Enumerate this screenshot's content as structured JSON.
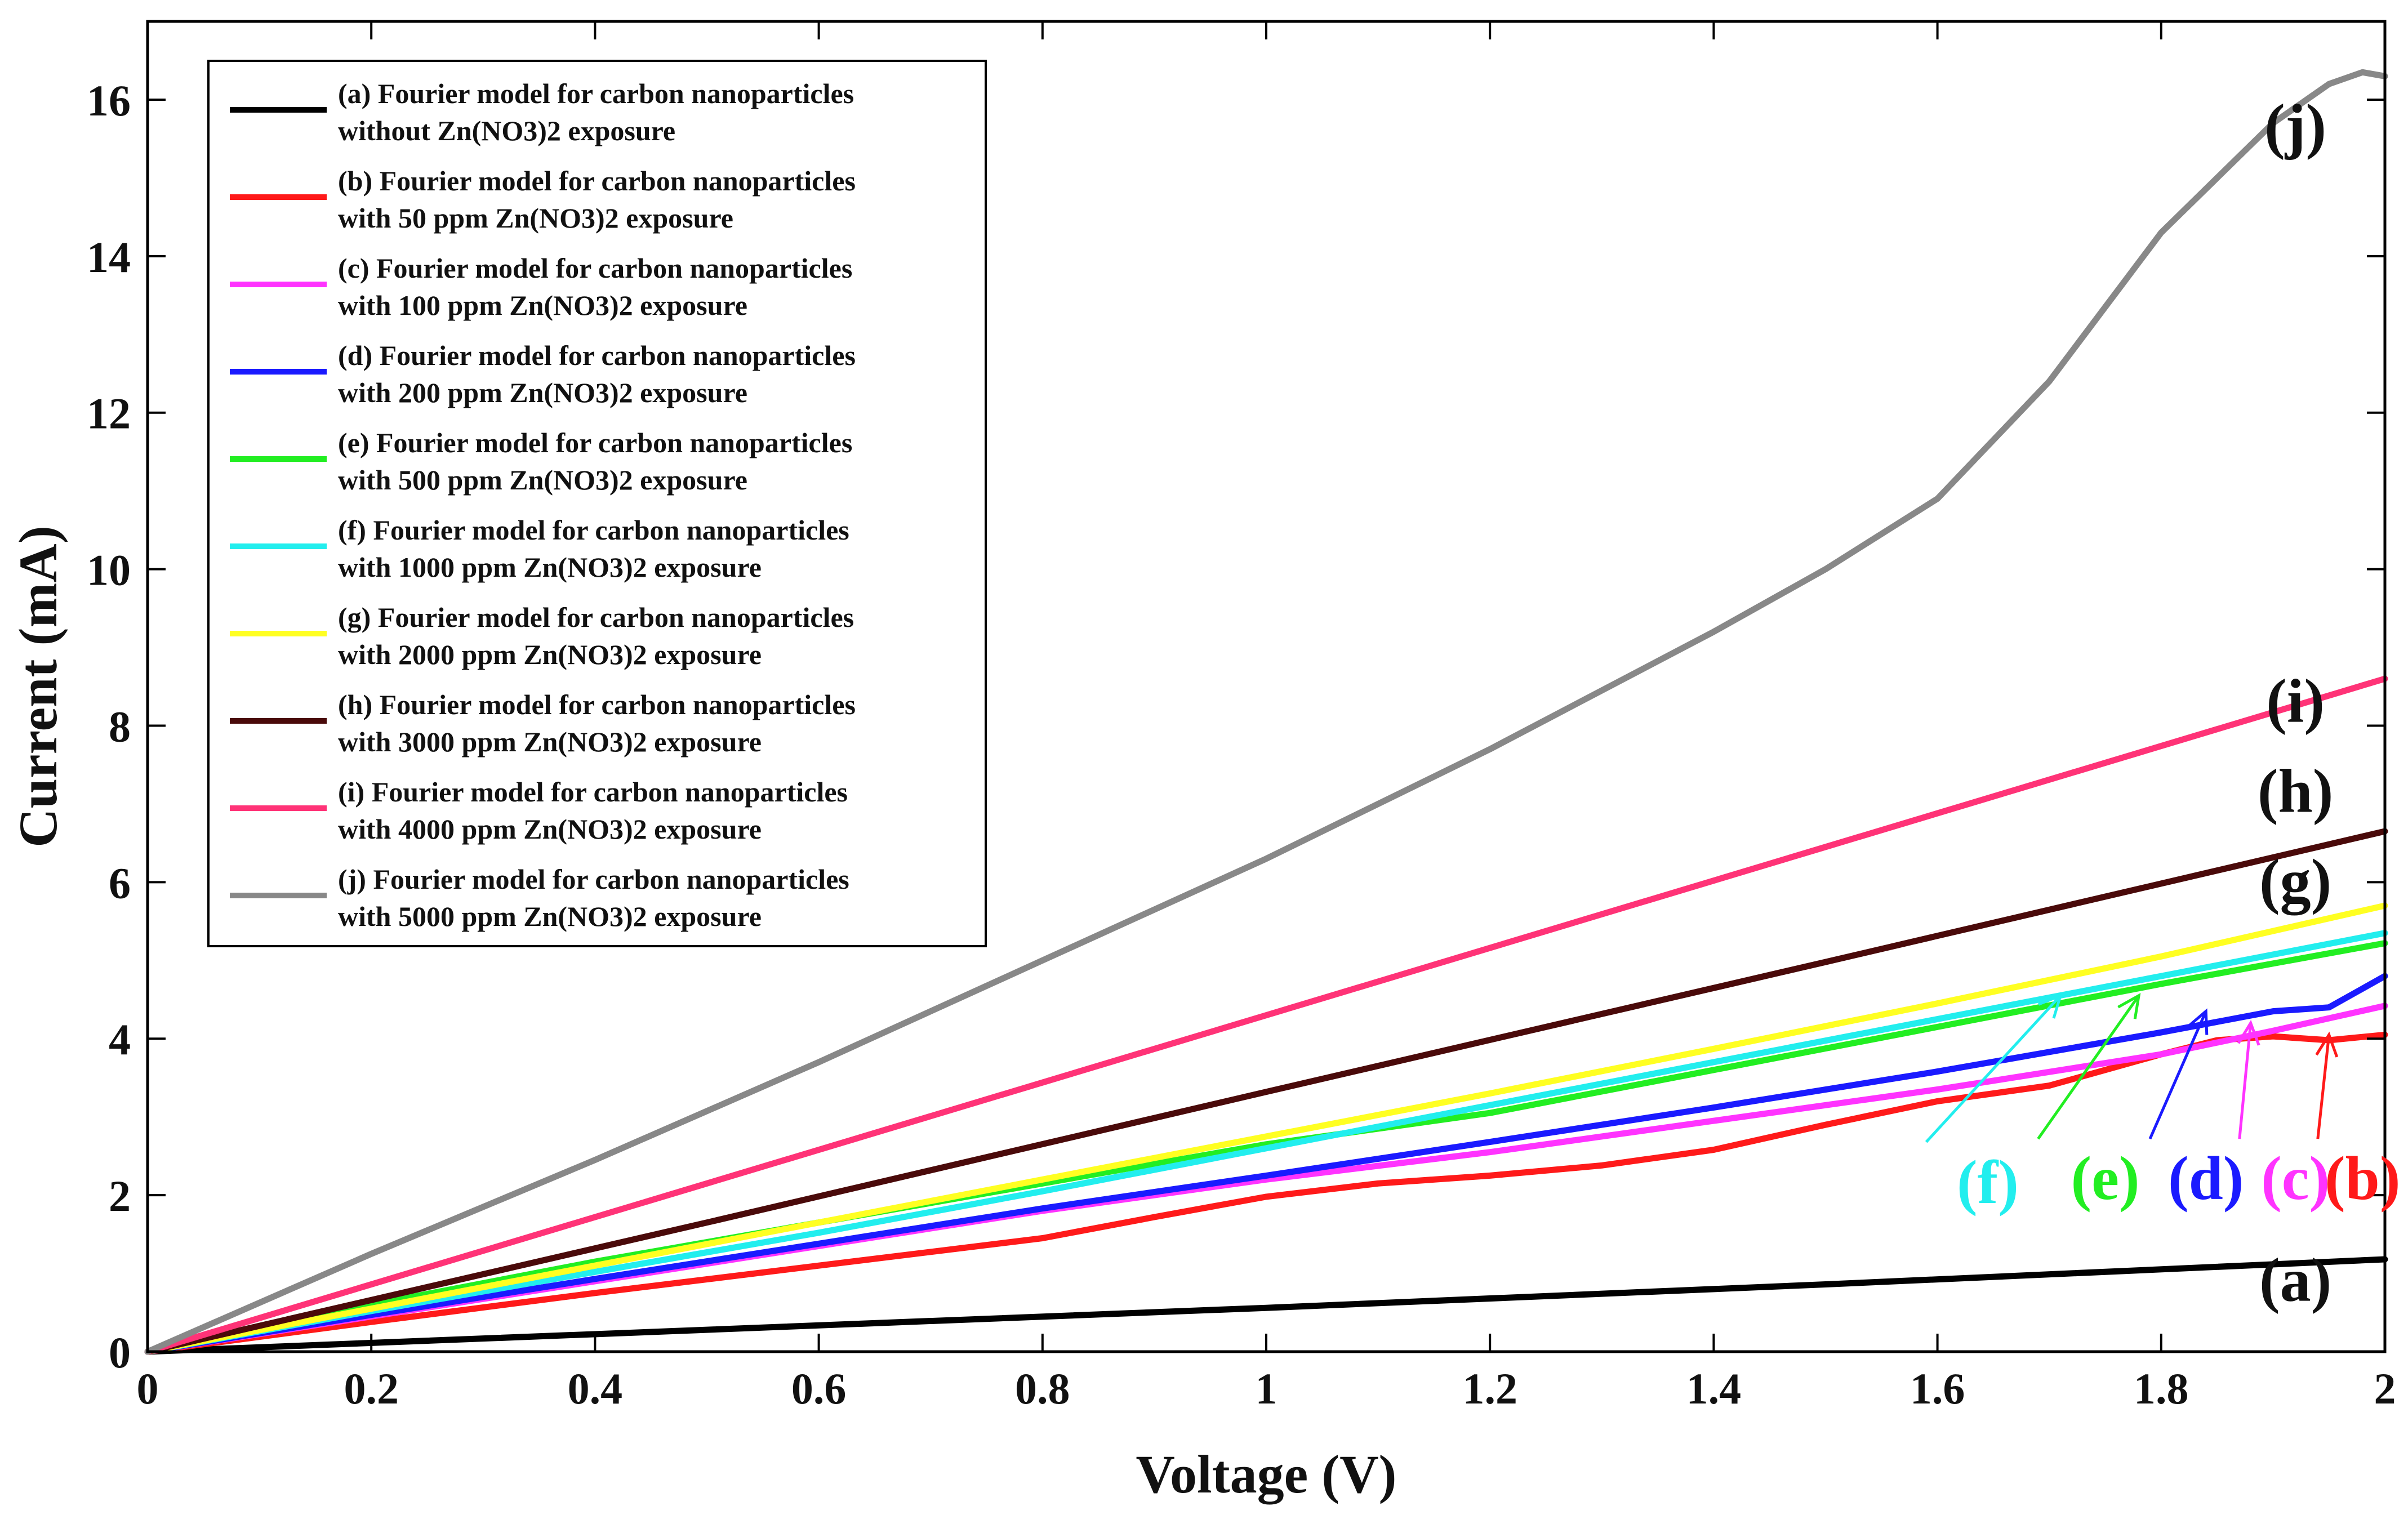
{
  "chart_data": {
    "type": "line",
    "xlabel": "Voltage (V)",
    "ylabel": "Current (mA)",
    "xlim": [
      0,
      2
    ],
    "ylim": [
      0,
      17
    ],
    "xticks": [
      0,
      0.2,
      0.4,
      0.6,
      0.8,
      1,
      1.2,
      1.4,
      1.6,
      1.8,
      2
    ],
    "xtick_labels": [
      "0",
      "0.2",
      "0.4",
      "0.6",
      "0.8",
      "1",
      "1.2",
      "1.4",
      "1.6",
      "1.8",
      "2"
    ],
    "yticks": [
      0,
      2,
      4,
      6,
      8,
      10,
      12,
      14,
      16
    ],
    "ytick_labels": [
      "0",
      "2",
      "4",
      "6",
      "8",
      "10",
      "12",
      "14",
      "16"
    ],
    "grid": false,
    "legend_position": "top-left",
    "series": [
      {
        "id": "a",
        "color": "#000000",
        "legend": [
          "(a) Fourier model for carbon nanoparticles",
          "without  Zn(NO3)2 exposure"
        ],
        "x": [
          0,
          0.5,
          1.0,
          1.5,
          2.0
        ],
        "y": [
          0,
          0.28,
          0.56,
          0.86,
          1.18
        ]
      },
      {
        "id": "b",
        "color": "#ff1a1a",
        "legend": [
          "(b) Fourier model for carbon nanoparticles",
          "with 50 ppm Zn(NO3)2 exposure"
        ],
        "x": [
          0,
          0.2,
          0.4,
          0.6,
          0.8,
          0.9,
          1.0,
          1.1,
          1.2,
          1.3,
          1.4,
          1.5,
          1.6,
          1.7,
          1.8,
          1.85,
          1.9,
          1.95,
          2.0
        ],
        "y": [
          0,
          0.38,
          0.75,
          1.1,
          1.45,
          1.72,
          1.98,
          2.15,
          2.25,
          2.38,
          2.58,
          2.9,
          3.2,
          3.4,
          3.8,
          3.98,
          4.03,
          3.98,
          4.05
        ]
      },
      {
        "id": "c",
        "color": "#ff33ff",
        "legend": [
          "(c) Fourier model for carbon nanoparticles",
          "with 100 ppm Zn(NO3)2 exposure"
        ],
        "x": [
          0,
          0.2,
          0.4,
          0.6,
          0.8,
          1.0,
          1.2,
          1.4,
          1.6,
          1.8,
          1.9,
          2.0
        ],
        "y": [
          0,
          0.45,
          0.9,
          1.35,
          1.8,
          2.2,
          2.55,
          2.95,
          3.35,
          3.8,
          4.1,
          4.42
        ]
      },
      {
        "id": "d",
        "color": "#1a1aff",
        "legend": [
          "(d) Fourier model for carbon nanoparticles",
          "with 200 ppm Zn(NO3)2 exposure"
        ],
        "x": [
          0,
          0.2,
          0.4,
          0.6,
          0.8,
          1.0,
          1.2,
          1.4,
          1.6,
          1.8,
          1.9,
          1.95,
          2.0
        ],
        "y": [
          0,
          0.47,
          0.93,
          1.38,
          1.83,
          2.25,
          2.68,
          3.12,
          3.58,
          4.08,
          4.35,
          4.4,
          4.8
        ]
      },
      {
        "id": "e",
        "color": "#22ee22",
        "legend": [
          "(e) Fourier model for carbon nanoparticles",
          "with 500 ppm Zn(NO3)2 exposure"
        ],
        "x": [
          0,
          0.2,
          0.4,
          0.6,
          0.8,
          1.0,
          1.2,
          1.4,
          1.6,
          1.8,
          2.0
        ],
        "y": [
          0,
          0.6,
          1.15,
          1.65,
          2.15,
          2.65,
          3.05,
          3.6,
          4.15,
          4.7,
          5.22
        ]
      },
      {
        "id": "f",
        "color": "#22eeee",
        "legend": [
          "(f) Fourier model for carbon nanoparticles",
          "with 1000 ppm Zn(NO3)2 exposure"
        ],
        "x": [
          0,
          0.2,
          0.4,
          0.6,
          0.8,
          1.0,
          1.2,
          1.4,
          1.6,
          1.8,
          2.0
        ],
        "y": [
          0,
          0.52,
          1.02,
          1.52,
          2.05,
          2.6,
          3.15,
          3.7,
          4.25,
          4.8,
          5.35
        ]
      },
      {
        "id": "g",
        "color": "#ffff22",
        "legend": [
          "(g) Fourier model for carbon nanoparticles",
          "with 2000 ppm Zn(NO3)2 exposure"
        ],
        "x": [
          0,
          0.2,
          0.4,
          0.6,
          0.8,
          1.0,
          1.2,
          1.4,
          1.6,
          1.8,
          2.0
        ],
        "y": [
          0,
          0.55,
          1.1,
          1.65,
          2.2,
          2.75,
          3.3,
          3.87,
          4.45,
          5.05,
          5.7
        ]
      },
      {
        "id": "h",
        "color": "#4a0a0a",
        "legend": [
          "(h) Fourier model for carbon nanoparticles",
          "with 3000 ppm Zn(NO3)2 exposure"
        ],
        "x": [
          0,
          0.5,
          1.0,
          1.5,
          2.0
        ],
        "y": [
          0,
          1.65,
          3.32,
          4.98,
          6.65
        ]
      },
      {
        "id": "i",
        "color": "#ff3377",
        "legend": [
          "(i) Fourier model for carbon nanoparticles",
          "with 4000 ppm Zn(NO3)2 exposure"
        ],
        "x": [
          0,
          0.5,
          1.0,
          1.5,
          2.0
        ],
        "y": [
          0,
          2.15,
          4.3,
          6.45,
          8.6
        ]
      },
      {
        "id": "j",
        "color": "#888888",
        "legend": [
          "(j) Fourier model for carbon nanoparticles",
          "with 5000 ppm Zn(NO3)2 exposure"
        ],
        "x": [
          0,
          0.2,
          0.4,
          0.6,
          0.8,
          1.0,
          1.2,
          1.4,
          1.5,
          1.6,
          1.7,
          1.8,
          1.9,
          1.95,
          1.98,
          2.0
        ],
        "y": [
          0,
          1.25,
          2.45,
          3.7,
          5.0,
          6.3,
          7.7,
          9.2,
          10.0,
          10.9,
          12.4,
          14.3,
          15.7,
          16.2,
          16.35,
          16.3
        ]
      }
    ],
    "annotations": [
      {
        "text": "(j)",
        "color": "#111111",
        "x": 1.92,
        "y": 15.4
      },
      {
        "text": "(i)",
        "color": "#111111",
        "x": 1.92,
        "y": 8.05
      },
      {
        "text": "(h)",
        "color": "#111111",
        "x": 1.92,
        "y": 6.9
      },
      {
        "text": "(g)",
        "color": "#111111",
        "x": 1.92,
        "y": 5.75
      },
      {
        "text": "(a)",
        "color": "#111111",
        "x": 1.92,
        "y": 0.65
      },
      {
        "text": "(f)",
        "color": "#22eeee",
        "x": 1.645,
        "y": 1.9
      },
      {
        "text": "(e)",
        "color": "#22ee22",
        "x": 1.75,
        "y": 1.95
      },
      {
        "text": "(d)",
        "color": "#1a1aff",
        "x": 1.84,
        "y": 1.95
      },
      {
        "text": "(c)",
        "color": "#ff33ff",
        "x": 1.92,
        "y": 1.95
      },
      {
        "text": "(b)",
        "color": "#ff1a1a",
        "x": 1.98,
        "y": 1.95
      }
    ],
    "arrows": [
      {
        "id": "f",
        "color": "#22eeee",
        "from": [
          1.59,
          2.68
        ],
        "to": [
          1.71,
          4.55
        ]
      },
      {
        "id": "e",
        "color": "#22ee22",
        "from": [
          1.69,
          2.72
        ],
        "to": [
          1.78,
          4.55
        ]
      },
      {
        "id": "d",
        "color": "#1a1aff",
        "from": [
          1.79,
          2.72
        ],
        "to": [
          1.84,
          4.35
        ]
      },
      {
        "id": "c",
        "color": "#ff33ff",
        "from": [
          1.87,
          2.72
        ],
        "to": [
          1.88,
          4.2
        ]
      },
      {
        "id": "b",
        "color": "#ff1a1a",
        "from": [
          1.94,
          2.72
        ],
        "to": [
          1.95,
          4.05
        ]
      }
    ]
  }
}
